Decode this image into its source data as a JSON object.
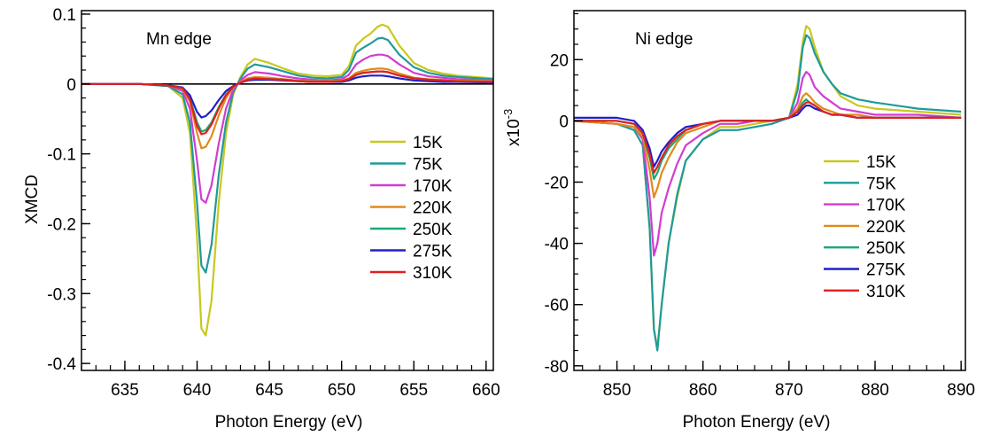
{
  "chart_data": [
    {
      "type": "line",
      "annotation": "Mn edge",
      "xlabel": "Photon Energy (eV)",
      "ylabel": "XMCD",
      "xlim": [
        632,
        660.5
      ],
      "ylim": [
        -0.41,
        0.105
      ],
      "xticks": [
        635,
        640,
        645,
        650,
        655,
        660
      ],
      "yticks": [
        0.1,
        0,
        -0.1,
        -0.2,
        -0.3,
        -0.4
      ],
      "ytick_labels": [
        "0.1",
        "0",
        "-0.1",
        "-0.2",
        "-0.3",
        "-0.4"
      ],
      "zero_line": true,
      "legend_position": "right-middle",
      "series": [
        {
          "name": "15K",
          "color": "#c8c820",
          "x": [
            632,
            636,
            638,
            639,
            639.5,
            640,
            640.3,
            640.6,
            641,
            641.5,
            642,
            642.5,
            643,
            643.5,
            644,
            645,
            646,
            647,
            648,
            649,
            650,
            650.5,
            651,
            651.5,
            652,
            652.5,
            652.8,
            653.2,
            654,
            655,
            656,
            657,
            658,
            660.5
          ],
          "y": [
            0,
            0,
            -0.003,
            -0.02,
            -0.07,
            -0.22,
            -0.35,
            -0.36,
            -0.31,
            -0.17,
            -0.07,
            -0.015,
            0.01,
            0.028,
            0.036,
            0.03,
            0.022,
            0.015,
            0.012,
            0.011,
            0.013,
            0.025,
            0.055,
            0.065,
            0.072,
            0.082,
            0.085,
            0.082,
            0.055,
            0.03,
            0.02,
            0.015,
            0.012,
            0.008
          ]
        },
        {
          "name": "75K",
          "color": "#1f9a9a",
          "x": [
            632,
            636,
            638,
            639,
            639.5,
            640,
            640.3,
            640.6,
            641,
            641.5,
            642,
            642.5,
            643,
            643.5,
            644,
            645,
            646,
            647,
            648,
            649,
            650,
            650.5,
            651,
            651.5,
            652,
            652.5,
            652.8,
            653.2,
            654,
            655,
            656,
            657,
            658,
            660.5
          ],
          "y": [
            0,
            0,
            -0.003,
            -0.015,
            -0.055,
            -0.17,
            -0.26,
            -0.27,
            -0.23,
            -0.13,
            -0.055,
            -0.012,
            0.008,
            0.022,
            0.028,
            0.024,
            0.018,
            0.012,
            0.009,
            0.008,
            0.01,
            0.02,
            0.045,
            0.052,
            0.058,
            0.065,
            0.066,
            0.063,
            0.042,
            0.024,
            0.016,
            0.012,
            0.01,
            0.007
          ]
        },
        {
          "name": "170K",
          "color": "#d23cd2",
          "x": [
            632,
            636,
            638,
            639,
            639.5,
            640,
            640.3,
            640.6,
            641,
            641.5,
            642,
            642.5,
            643,
            643.5,
            644,
            645,
            646,
            647,
            648,
            649,
            650,
            650.5,
            651,
            651.5,
            652,
            652.5,
            652.8,
            653.2,
            654,
            655,
            656,
            657,
            658,
            660.5
          ],
          "y": [
            0,
            0,
            -0.002,
            -0.01,
            -0.035,
            -0.11,
            -0.165,
            -0.17,
            -0.145,
            -0.085,
            -0.035,
            -0.008,
            0.005,
            0.013,
            0.017,
            0.015,
            0.011,
            0.008,
            0.006,
            0.005,
            0.007,
            0.013,
            0.028,
            0.035,
            0.04,
            0.042,
            0.042,
            0.04,
            0.028,
            0.016,
            0.011,
            0.009,
            0.007,
            0.005
          ]
        },
        {
          "name": "220K",
          "color": "#e08a1e",
          "x": [
            632,
            636,
            638,
            639,
            639.5,
            640,
            640.3,
            640.6,
            641,
            641.5,
            642,
            642.5,
            643,
            643.5,
            644,
            645,
            646,
            647,
            648,
            649,
            650,
            650.5,
            651,
            651.5,
            652,
            652.5,
            652.8,
            653.2,
            654,
            655,
            656,
            657,
            658,
            660.5
          ],
          "y": [
            0,
            0,
            -0.002,
            -0.007,
            -0.025,
            -0.07,
            -0.092,
            -0.09,
            -0.075,
            -0.045,
            -0.02,
            -0.005,
            0.003,
            0.008,
            0.01,
            0.009,
            0.007,
            0.005,
            0.004,
            0.004,
            0.005,
            0.008,
            0.016,
            0.019,
            0.021,
            0.022,
            0.022,
            0.021,
            0.015,
            0.009,
            0.007,
            0.006,
            0.005,
            0.004
          ]
        },
        {
          "name": "250K",
          "color": "#1aaa70",
          "x": [
            632,
            636,
            638,
            639,
            639.5,
            640,
            640.3,
            640.6,
            641,
            641.5,
            642,
            642.5,
            643,
            643.5,
            644,
            645,
            646,
            647,
            648,
            649,
            650,
            650.5,
            651,
            651.5,
            652,
            652.5,
            652.8,
            653.2,
            654,
            655,
            656,
            657,
            658,
            660.5
          ],
          "y": [
            0,
            0,
            -0.002,
            -0.006,
            -0.02,
            -0.055,
            -0.068,
            -0.066,
            -0.055,
            -0.033,
            -0.015,
            -0.004,
            0.002,
            0.006,
            0.008,
            0.007,
            0.006,
            0.004,
            0.003,
            0.003,
            0.004,
            0.007,
            0.013,
            0.016,
            0.017,
            0.018,
            0.018,
            0.017,
            0.012,
            0.008,
            0.006,
            0.005,
            0.004,
            0.003
          ]
        },
        {
          "name": "275K",
          "color": "#2020c8",
          "x": [
            632,
            636,
            638,
            639,
            639.5,
            640,
            640.3,
            640.6,
            641,
            641.5,
            642,
            642.5,
            643,
            643.5,
            644,
            645,
            646,
            647,
            648,
            649,
            650,
            650.5,
            651,
            651.5,
            652,
            652.5,
            652.8,
            653.2,
            654,
            655,
            656,
            657,
            658,
            660.5
          ],
          "y": [
            0,
            0,
            -0.002,
            -0.005,
            -0.016,
            -0.04,
            -0.048,
            -0.046,
            -0.038,
            -0.023,
            -0.01,
            -0.003,
            0.002,
            0.005,
            0.006,
            0.006,
            0.005,
            0.004,
            0.003,
            0.003,
            0.003,
            0.005,
            0.009,
            0.011,
            0.012,
            0.012,
            0.012,
            0.011,
            0.008,
            0.005,
            0.004,
            0.003,
            0.003,
            0.002
          ]
        },
        {
          "name": "310K",
          "color": "#e02020",
          "x": [
            632,
            636,
            638,
            639,
            639.5,
            640,
            640.3,
            640.6,
            641,
            641.5,
            642,
            642.5,
            643,
            643.5,
            644,
            645,
            646,
            647,
            648,
            649,
            650,
            650.5,
            651,
            651.5,
            652,
            652.5,
            652.8,
            653.2,
            654,
            655,
            656,
            657,
            658,
            660.5
          ],
          "y": [
            0,
            0,
            -0.002,
            -0.006,
            -0.022,
            -0.06,
            -0.072,
            -0.07,
            -0.058,
            -0.035,
            -0.016,
            -0.004,
            0.002,
            0.006,
            0.008,
            0.007,
            0.006,
            0.004,
            0.003,
            0.003,
            0.004,
            0.007,
            0.013,
            0.016,
            0.017,
            0.018,
            0.018,
            0.017,
            0.012,
            0.008,
            0.006,
            0.005,
            0.004,
            0.003
          ]
        }
      ]
    },
    {
      "type": "line",
      "annotation": "Ni edge",
      "xlabel": "Photon Energy (eV)",
      "ylabel": "x10-3",
      "ylabel_base": "x10",
      "ylabel_exponent": "-3",
      "xlim": [
        845,
        890.5
      ],
      "ylim": [
        -81.5,
        36
      ],
      "xticks": [
        850,
        860,
        870,
        880,
        890
      ],
      "yticks": [
        20,
        0,
        -20,
        -40,
        -60,
        -80
      ],
      "ytick_labels": [
        "20",
        "0",
        "-20",
        "-40",
        "-60",
        "-80"
      ],
      "legend_position": "bottom-right",
      "series": [
        {
          "name": "15K",
          "color": "#c8c820",
          "x": [
            845,
            850,
            852,
            853,
            853.8,
            854.3,
            854.7,
            855.2,
            856,
            857,
            858,
            860,
            862,
            864,
            866,
            868,
            870,
            871,
            871.6,
            872,
            872.4,
            873,
            874,
            875,
            876,
            878,
            880,
            885,
            890
          ],
          "y": [
            0,
            -1,
            -3,
            -8,
            -35,
            -68,
            -74,
            -60,
            -40,
            -25,
            -13,
            -6,
            -2,
            -2,
            -1,
            0,
            1,
            12,
            26,
            31,
            30,
            24,
            16,
            12,
            8,
            5,
            4,
            3,
            2
          ]
        },
        {
          "name": "75K",
          "color": "#1f9a9a",
          "x": [
            845,
            850,
            852,
            853,
            853.8,
            854.3,
            854.7,
            855.2,
            856,
            857,
            858,
            860,
            862,
            864,
            866,
            868,
            870,
            871,
            871.6,
            872,
            872.4,
            873,
            874,
            875,
            876,
            878,
            880,
            885,
            890
          ],
          "y": [
            0,
            -1,
            -3,
            -8,
            -35,
            -68,
            -75,
            -60,
            -40,
            -24,
            -13,
            -6,
            -3,
            -3,
            -2,
            -1,
            1,
            10,
            24,
            28,
            27,
            22,
            16,
            12,
            9,
            7,
            6,
            4,
            3
          ]
        },
        {
          "name": "170K",
          "color": "#d23cd2",
          "x": [
            845,
            850,
            852,
            853,
            853.8,
            854.3,
            854.7,
            855.2,
            856,
            857,
            858,
            860,
            862,
            864,
            866,
            868,
            870,
            871,
            871.6,
            872,
            872.4,
            873,
            874,
            875,
            876,
            878,
            880,
            885,
            890
          ],
          "y": [
            0,
            -1,
            -2,
            -6,
            -25,
            -44,
            -40,
            -30,
            -22,
            -14,
            -8,
            -4,
            -1,
            -1,
            0,
            0,
            1,
            6,
            14,
            16,
            15,
            11,
            8,
            6,
            4,
            3,
            2,
            2,
            1
          ]
        },
        {
          "name": "220K",
          "color": "#e08a1e",
          "x": [
            845,
            850,
            852,
            853,
            853.8,
            854.3,
            854.7,
            855.2,
            856,
            857,
            858,
            860,
            862,
            864,
            866,
            868,
            870,
            871,
            871.6,
            872,
            872.4,
            873,
            874,
            875,
            876,
            878,
            880,
            885,
            890
          ],
          "y": [
            0,
            -1,
            -2,
            -5,
            -16,
            -25,
            -22,
            -17,
            -12,
            -7,
            -4,
            -2,
            0,
            0,
            0,
            0,
            1,
            4,
            8,
            9,
            8,
            6,
            4,
            3,
            2,
            2,
            1,
            1,
            1
          ]
        },
        {
          "name": "250K",
          "color": "#1aaa70",
          "x": [
            845,
            850,
            852,
            853,
            853.8,
            854.3,
            854.7,
            855.2,
            856,
            857,
            858,
            860,
            862,
            864,
            866,
            868,
            870,
            871,
            871.6,
            872,
            872.4,
            873,
            874,
            875,
            876,
            878,
            880,
            885,
            890
          ],
          "y": [
            0,
            0,
            -1,
            -4,
            -12,
            -19,
            -17,
            -13,
            -9,
            -6,
            -3,
            -1,
            0,
            0,
            0,
            0,
            1,
            3,
            6,
            7,
            6,
            5,
            3,
            2,
            2,
            1,
            1,
            1,
            1
          ]
        },
        {
          "name": "275K",
          "color": "#2020c8",
          "x": [
            845,
            850,
            852,
            853,
            853.8,
            854.3,
            854.7,
            855.2,
            856,
            857,
            858,
            860,
            862,
            864,
            866,
            868,
            870,
            871,
            871.6,
            872,
            872.4,
            873,
            874,
            875,
            876,
            878,
            880,
            885,
            890
          ],
          "y": [
            1,
            1,
            0,
            -3,
            -9,
            -15,
            -13,
            -10,
            -7,
            -4,
            -2,
            -1,
            0,
            0,
            0,
            0,
            1,
            2,
            4,
            5,
            5,
            4,
            3,
            2,
            2,
            1,
            1,
            1,
            1
          ]
        },
        {
          "name": "310K",
          "color": "#e02020",
          "x": [
            845,
            850,
            852,
            853,
            853.8,
            854.3,
            854.7,
            855.2,
            856,
            857,
            858,
            860,
            862,
            864,
            866,
            868,
            870,
            871,
            871.6,
            872,
            872.4,
            873,
            874,
            875,
            876,
            878,
            880,
            885,
            890
          ],
          "y": [
            0,
            0,
            -1,
            -4,
            -11,
            -17,
            -15,
            -12,
            -8,
            -5,
            -3,
            -1,
            0,
            0,
            0,
            0,
            1,
            3,
            5,
            6,
            6,
            5,
            3,
            2,
            2,
            1,
            1,
            1,
            1
          ]
        }
      ]
    }
  ]
}
